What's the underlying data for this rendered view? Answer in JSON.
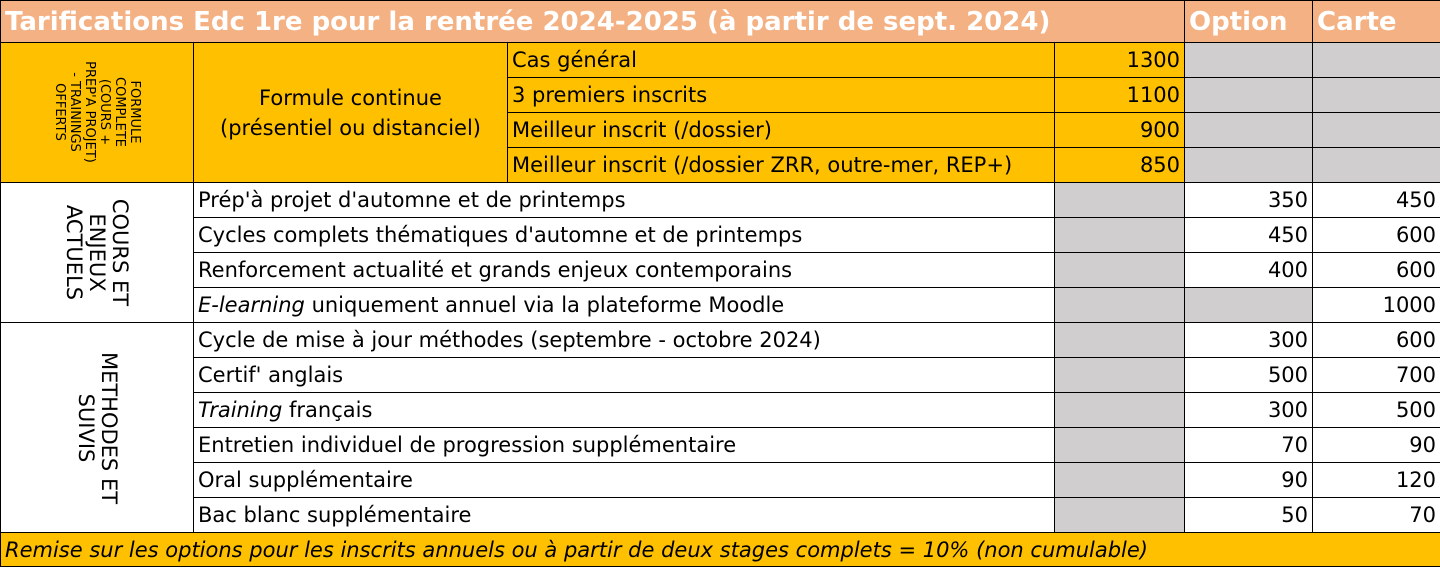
{
  "header": {
    "title": "Tarifications Edc 1re pour la rentrée 2024-2025 (à partir de sept. 2024)",
    "col_option": "Option",
    "col_carte": "Carte"
  },
  "formule": {
    "group_label": "FORMULE\nCOMPLETE\n(COURS +\nPREP'A PROJET)\n- TRAININGS\nOFFERTS",
    "name_line1": "Formule continue",
    "name_line2": "(présentiel ou distanciel)",
    "rows": [
      {
        "label": "Cas général",
        "price": "1300"
      },
      {
        "label": "3 premiers inscrits",
        "price": "1100"
      },
      {
        "label": "Meilleur inscrit (/dossier)",
        "price": "900"
      },
      {
        "label": "Meilleur inscrit (/dossier ZRR, outre-mer, REP+)",
        "price": "850"
      }
    ]
  },
  "cours": {
    "group_label": "COURS ET\nENJEUX\nACTUELS",
    "rows": [
      {
        "label": "Prép'à projet d'automne et de printemps",
        "option": "350",
        "carte": "450"
      },
      {
        "label": "Cycles complets thématiques d'automne et de printemps",
        "option": "450",
        "carte": "600"
      },
      {
        "label": "Renforcement actualité et grands enjeux contemporains",
        "option": "400",
        "carte": "600"
      }
    ],
    "elearning": {
      "italic": "E-learning",
      "rest": " uniquement annuel via la plateforme Moodle",
      "option": "",
      "carte": "1000"
    }
  },
  "methodes": {
    "group_label": "METHODES ET\nSUIVIS",
    "row1": {
      "label": "Cycle de mise à jour méthodes (septembre - octobre 2024)",
      "option": "300",
      "carte": "600"
    },
    "row2": {
      "label": "Certif' anglais",
      "option": "500",
      "carte": "700"
    },
    "training": {
      "italic": "Training",
      "rest": " français",
      "option": "300",
      "carte": "500"
    },
    "rows": [
      {
        "label": "Entretien individuel de progression supplémentaire",
        "option": "70",
        "carte": "90"
      },
      {
        "label": "Oral supplémentaire",
        "option": "90",
        "carte": "120"
      },
      {
        "label": "Bac blanc supplémentaire",
        "option": "50",
        "carte": "70"
      }
    ]
  },
  "footer": {
    "note": "Remise sur les options pour les inscrits annuels ou à partir de deux stages complets = 10% (non cumulable)"
  },
  "colors": {
    "header": "#F4B183",
    "orange": "#FFC000",
    "gray": "#D0CECE"
  }
}
